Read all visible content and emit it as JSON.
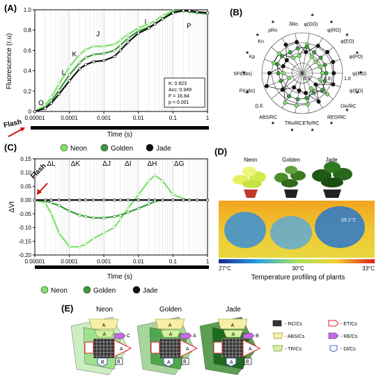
{
  "panels": {
    "A": "(A)",
    "B": "(B)",
    "C": "(C)",
    "D": "(D)",
    "E": "(E)"
  },
  "flash_label": "Flash",
  "chart_data": [
    {
      "panel": "A",
      "type": "line",
      "xlabel": "Time (s)",
      "ylabel": "Fluorescence (r.u)",
      "xscale": "log",
      "xlim": [
        1e-05,
        1
      ],
      "ylim": [
        0,
        1.0
      ],
      "x_ticks": [
        "0.00001",
        "0.0001",
        "0.001",
        "0.01",
        "0.1",
        "1"
      ],
      "y_ticks": [
        "0",
        "0.2",
        "0.4",
        "0.6",
        "0.8",
        "1.0"
      ],
      "phase_labels": [
        "O",
        "L",
        "K",
        "J",
        "I",
        "P"
      ],
      "stats": {
        "K": "K: 0.923",
        "Acc": "Acc: 0.949",
        "F": "F = 16.84",
        "p": "p < 0.001"
      },
      "series": [
        {
          "name": "Neon",
          "color": "#7ee06a",
          "x": [
            1e-05,
            2e-05,
            3e-05,
            5e-05,
            0.0001,
            0.0002,
            0.0003,
            0.0005,
            0.001,
            0.002,
            0.003,
            0.005,
            0.01,
            0.02,
            0.03,
            0.05,
            0.1,
            0.2,
            0.3,
            0.5,
            1
          ],
          "values": [
            0.0,
            0.06,
            0.14,
            0.27,
            0.44,
            0.56,
            0.61,
            0.64,
            0.64,
            0.66,
            0.7,
            0.76,
            0.82,
            0.86,
            0.89,
            0.94,
            0.99,
            0.99,
            0.98,
            0.97,
            0.96
          ]
        },
        {
          "name": "Golden",
          "color": "#3a9a3a",
          "x": [
            1e-05,
            2e-05,
            3e-05,
            5e-05,
            0.0001,
            0.0002,
            0.0003,
            0.0005,
            0.001,
            0.002,
            0.003,
            0.005,
            0.01,
            0.02,
            0.03,
            0.05,
            0.1,
            0.2,
            0.3,
            0.5,
            1
          ],
          "values": [
            0.0,
            0.04,
            0.1,
            0.21,
            0.36,
            0.48,
            0.53,
            0.56,
            0.57,
            0.6,
            0.65,
            0.72,
            0.79,
            0.83,
            0.86,
            0.91,
            0.98,
            0.99,
            0.98,
            0.97,
            0.96
          ]
        },
        {
          "name": "Jade",
          "color": "#111111",
          "x": [
            1e-05,
            2e-05,
            3e-05,
            5e-05,
            0.0001,
            0.0002,
            0.0003,
            0.0005,
            0.001,
            0.002,
            0.003,
            0.005,
            0.01,
            0.02,
            0.03,
            0.05,
            0.1,
            0.2,
            0.3,
            0.5,
            1
          ],
          "values": [
            0.0,
            0.03,
            0.08,
            0.17,
            0.3,
            0.42,
            0.46,
            0.49,
            0.5,
            0.54,
            0.6,
            0.68,
            0.77,
            0.82,
            0.86,
            0.91,
            0.97,
            0.99,
            0.99,
            0.98,
            0.97
          ]
        }
      ]
    },
    {
      "panel": "B",
      "type": "radar",
      "ring_ticks": [
        "0.0",
        "0.8",
        "1.6"
      ],
      "axes": [
        "φ(DO)",
        "φ(RO)",
        "φ(EO)",
        "φ(PO)",
        "ψ(RO)",
        "ψ(EO)",
        "Dio/RC",
        "REO/RC",
        "ETo/RC",
        "TRo/RC",
        "ABS/RC",
        "D.F.",
        "PI(abs)",
        "SFI(abs)",
        "Kp",
        "Kn",
        "ρRo",
        "δRo"
      ],
      "starred": [
        true,
        true,
        true,
        true,
        true,
        true,
        true,
        true,
        true,
        true,
        true,
        false,
        true,
        true,
        true,
        true,
        true,
        false
      ],
      "series": [
        {
          "name": "Neon",
          "color": "#7ee06a",
          "values": [
            1.15,
            0.75,
            0.7,
            0.75,
            0.8,
            0.75,
            1.3,
            0.7,
            1.25,
            1.3,
            1.35,
            0.95,
            0.55,
            0.75,
            1.2,
            1.2,
            0.7,
            0.7
          ]
        },
        {
          "name": "Golden",
          "color": "#3a9a3a",
          "values": [
            1.05,
            0.95,
            0.95,
            0.95,
            0.95,
            0.95,
            1.05,
            0.9,
            1.0,
            1.05,
            1.05,
            0.98,
            0.9,
            0.95,
            1.05,
            1.05,
            0.95,
            1.0
          ]
        },
        {
          "name": "Jade",
          "color": "#111111",
          "values": [
            0.85,
            1.25,
            1.3,
            1.3,
            1.25,
            1.3,
            0.7,
            1.3,
            0.8,
            0.7,
            0.65,
            1.02,
            1.5,
            1.3,
            0.8,
            0.8,
            1.3,
            1.25
          ]
        }
      ]
    },
    {
      "panel": "C",
      "type": "line",
      "xlabel": "Time (s)",
      "ylabel": "ΔVt",
      "xscale": "log",
      "xlim": [
        1e-05,
        1
      ],
      "ylim": [
        -0.2,
        0.15
      ],
      "x_ticks": [
        "0.00001",
        "0.0001",
        "0.001",
        "0.01",
        "0.1",
        "1"
      ],
      "y_ticks": [
        "0.15",
        "0.10",
        "0.05",
        "0.00",
        "-0.05",
        "-0.10",
        "-0.15",
        "-0.20"
      ],
      "band_labels": [
        "ΔL",
        "ΔK",
        "ΔJ",
        "ΔI",
        "ΔH",
        "ΔG"
      ],
      "series": [
        {
          "name": "Neon",
          "color": "#7ee06a",
          "x": [
            1e-05,
            2e-05,
            3e-05,
            5e-05,
            0.0001,
            0.0002,
            0.0003,
            0.0005,
            0.001,
            0.002,
            0.003,
            0.005,
            0.01,
            0.02,
            0.03,
            0.05,
            0.1,
            0.2,
            0.3,
            0.5,
            1
          ],
          "values": [
            0.0,
            -0.01,
            -0.05,
            -0.12,
            -0.17,
            -0.17,
            -0.16,
            -0.14,
            -0.12,
            -0.1,
            -0.07,
            -0.03,
            0.02,
            0.07,
            0.09,
            0.07,
            0.02,
            0.005,
            0.0,
            0.0,
            0.0
          ]
        },
        {
          "name": "Golden",
          "color": "#3a9a3a",
          "x": [
            1e-05,
            2e-05,
            3e-05,
            5e-05,
            0.0001,
            0.0002,
            0.0003,
            0.0005,
            0.001,
            0.002,
            0.003,
            0.005,
            0.01,
            0.02,
            0.03,
            0.05,
            0.1,
            0.2,
            0.3,
            0.5,
            1
          ],
          "values": [
            0.0,
            -0.003,
            -0.01,
            -0.02,
            -0.04,
            -0.055,
            -0.06,
            -0.065,
            -0.065,
            -0.06,
            -0.055,
            -0.045,
            -0.03,
            -0.015,
            -0.005,
            0.0,
            0.0,
            0.0,
            0.0,
            0.0,
            0.0
          ]
        },
        {
          "name": "Jade",
          "color": "#111111",
          "x": [
            1e-05,
            2e-05,
            3e-05,
            5e-05,
            0.0001,
            0.0002,
            0.0003,
            0.0005,
            0.001,
            0.002,
            0.003,
            0.005,
            0.01,
            0.02,
            0.03,
            0.05,
            0.1,
            0.2,
            0.3,
            0.5,
            1
          ],
          "values": [
            0,
            0,
            0,
            0,
            0,
            0,
            0,
            0,
            0,
            0,
            0,
            0,
            0,
            0,
            0,
            0,
            0,
            0,
            0,
            0,
            0
          ]
        }
      ]
    }
  ],
  "panel_d": {
    "labels": [
      "Neon",
      "Golden",
      "Jade"
    ],
    "thermal_annotation": "29.1°C",
    "scale_min": "27°C",
    "scale_mid": "30°C",
    "scale_max": "33°C",
    "caption": "Temperature profiling of plants"
  },
  "panel_e": {
    "titles": [
      "Neon",
      "Golden",
      "Jade"
    ],
    "legend": [
      {
        "label": "- RC/Cs",
        "kind": "grid"
      },
      {
        "label": "- ET/Cs",
        "kind": "et"
      },
      {
        "label": "- ABS/Cs",
        "kind": "abs"
      },
      {
        "label": "- RE/Cs",
        "kind": "re"
      },
      {
        "label": "- TR/Cs",
        "kind": "tr"
      },
      {
        "label": "- DI/Cs",
        "kind": "di"
      }
    ],
    "letters": {
      "A": "A",
      "B": "B",
      "C": "C"
    }
  },
  "colors": {
    "neon": "#7ee06a",
    "golden": "#3a9a3a",
    "jade": "#111111",
    "flash": "#cc1111"
  }
}
